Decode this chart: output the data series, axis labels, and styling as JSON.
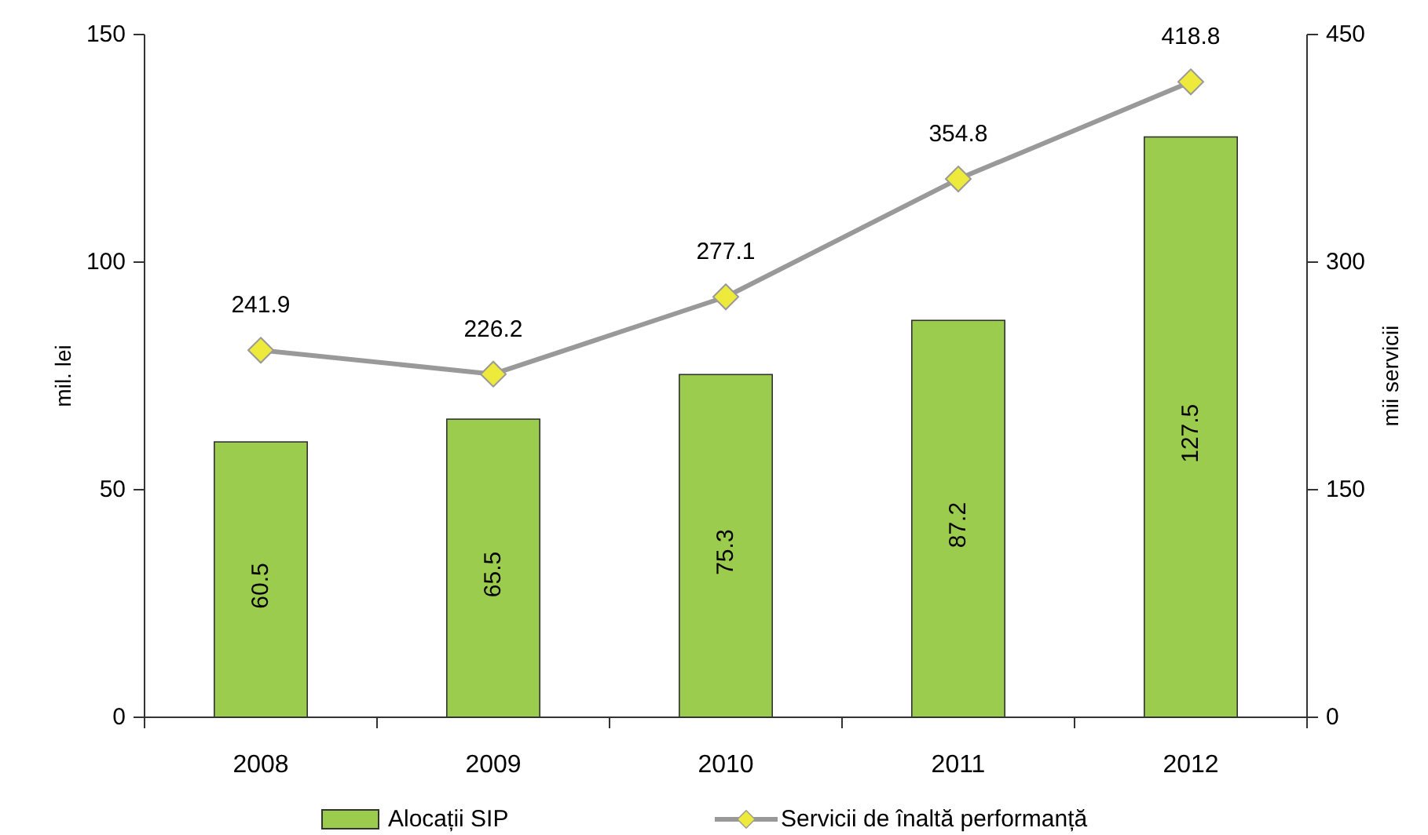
{
  "chart_data": {
    "type": "bar",
    "categories": [
      "2008",
      "2009",
      "2010",
      "2011",
      "2012"
    ],
    "ylabel": "mil. lei",
    "y2label": "mii servicii",
    "series": [
      {
        "name": "Alocații SIP",
        "color": "#9ccc4e",
        "values": [
          60.5,
          65.5,
          75.3,
          87.2,
          127.5
        ]
      },
      {
        "name": "Servicii de înaltă performanță",
        "type": "line",
        "axis": "y2",
        "color": "#999999",
        "marker": "diamond",
        "values": [
          241.9,
          226.2,
          277.1,
          354.8,
          418.8
        ]
      }
    ],
    "ylim": [
      0,
      150
    ],
    "yticks": [
      0,
      50,
      100,
      150
    ],
    "y2lim": [
      0,
      450
    ],
    "y2ticks": [
      0,
      150,
      300,
      450
    ],
    "data_labels": true,
    "legend": "bottom"
  }
}
